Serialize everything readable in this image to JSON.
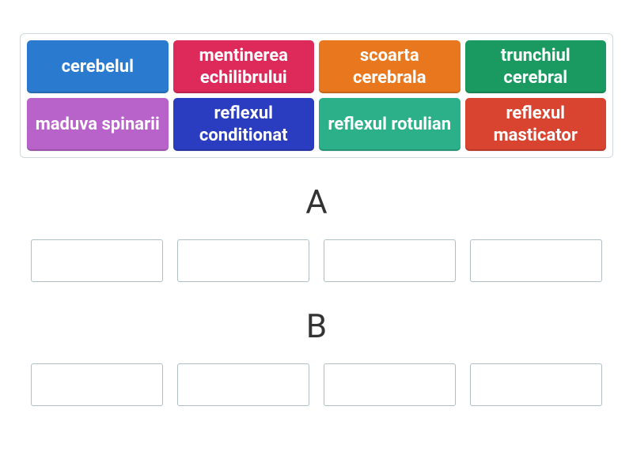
{
  "pool": {
    "cards": [
      {
        "label": "cerebelul",
        "color": "#2a7bcf"
      },
      {
        "label": "mentinerea echilibrului",
        "color": "#dd2a5b"
      },
      {
        "label": "scoarta cerebrala",
        "color": "#e8771d"
      },
      {
        "label": "trunchiul cerebral",
        "color": "#1a9960"
      },
      {
        "label": "maduva spinarii",
        "color": "#b863c9"
      },
      {
        "label": "reflexul conditionat",
        "color": "#2a3cc0"
      },
      {
        "label": "reflexul rotulian",
        "color": "#2cb08a"
      },
      {
        "label": "reflexul masticator",
        "color": "#d94431"
      }
    ],
    "border_color": "#cfd8dc",
    "card_font_size": 22,
    "card_font_weight": 700,
    "card_text_color": "#ffffff"
  },
  "sections": [
    {
      "label": "A",
      "slot_count": 4
    },
    {
      "label": "B",
      "slot_count": 4
    }
  ],
  "section_label_fontsize": 42,
  "drop_slot_border_color": "#b0bec5",
  "background_color": "#ffffff"
}
